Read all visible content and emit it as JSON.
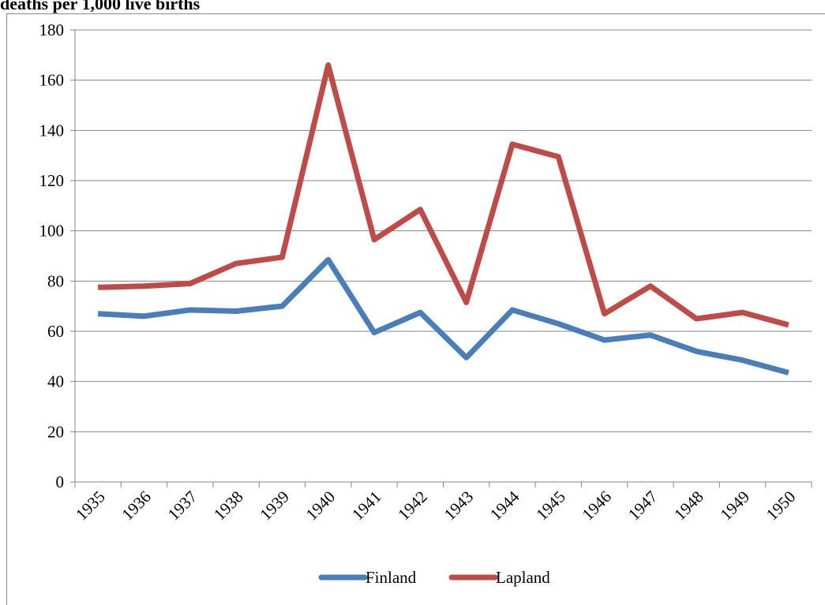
{
  "chart_data": {
    "type": "line",
    "title": "deaths per 1,000 live births",
    "categories": [
      "1935",
      "1936",
      "1937",
      "1938",
      "1939",
      "1940",
      "1941",
      "1942",
      "1943",
      "1944",
      "1945",
      "1946",
      "1947",
      "1948",
      "1949",
      "1950"
    ],
    "series": [
      {
        "name": "Finland",
        "color": "#4a7ebb",
        "values": [
          67,
          66,
          68.5,
          68,
          70,
          88.5,
          59.5,
          67.5,
          49.5,
          68.5,
          63,
          56.5,
          58.5,
          52,
          48.5,
          43.5
        ]
      },
      {
        "name": "Lapland",
        "color": "#be4b48",
        "values": [
          77.5,
          78,
          79,
          87,
          89.5,
          166,
          96.5,
          108.5,
          71.5,
          134.5,
          129.5,
          67,
          78,
          65,
          67.5,
          62.5
        ]
      }
    ],
    "ylim": [
      0,
      180
    ],
    "yticks": [
      0,
      20,
      40,
      60,
      80,
      100,
      120,
      140,
      160,
      180
    ],
    "grid": true,
    "legend": "bottom"
  }
}
